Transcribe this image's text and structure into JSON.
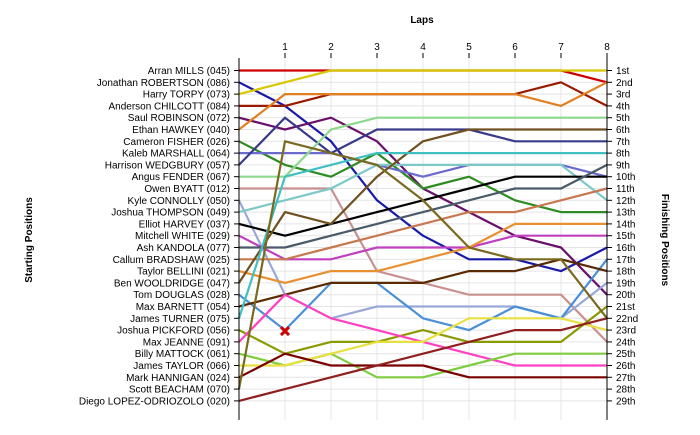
{
  "chart_data": {
    "type": "line",
    "title": "",
    "xlabel": "Laps",
    "ylabel_left": "Starting Positions",
    "ylabel_right": "Finishing Positions",
    "x": [
      0,
      1,
      2,
      3,
      4,
      5,
      6,
      7,
      8
    ],
    "x_tick_labels": [
      "1",
      "2",
      "3",
      "4",
      "5",
      "6",
      "7",
      "8"
    ],
    "y_range": [
      1,
      29
    ],
    "grid": true,
    "finishing_positions": [
      "1st",
      "2nd",
      "3rd",
      "4th",
      "5th",
      "6th",
      "7th",
      "8th",
      "9th",
      "10th",
      "11th",
      "12th",
      "13th",
      "14th",
      "15th",
      "16th",
      "17th",
      "18th",
      "19th",
      "20th",
      "21st",
      "22nd",
      "23rd",
      "24th",
      "25th",
      "26th",
      "27th",
      "28th",
      "29th"
    ],
    "annotations": [
      {
        "type": "crash-marker",
        "x": 1,
        "y": 23
      }
    ],
    "series": [
      {
        "name": "Arran MILLS (045)",
        "color": "#cc0000",
        "values": [
          1,
          1,
          1,
          1,
          1,
          1,
          1,
          1,
          2
        ]
      },
      {
        "name": "Jonathan ROBERTSON (086)",
        "color": "#1a1aa8",
        "values": [
          2,
          4,
          7,
          12,
          15,
          17,
          17,
          18,
          16
        ]
      },
      {
        "name": "Harry TORPY (073)",
        "color": "#d8c800",
        "values": [
          3,
          2,
          1,
          1,
          1,
          1,
          1,
          1,
          1
        ]
      },
      {
        "name": "Anderson CHILCOTT (084)",
        "color": "#9a1a00",
        "values": [
          4,
          4,
          3,
          3,
          3,
          3,
          3,
          2,
          4
        ]
      },
      {
        "name": "Saul ROBINSON (072)",
        "color": "#6a0f6a",
        "values": [
          5,
          6,
          5,
          7,
          11,
          13,
          15,
          16,
          20
        ]
      },
      {
        "name": "Ethan HAWKEY (040)",
        "color": "#e08020",
        "values": [
          6,
          3,
          3,
          3,
          3,
          3,
          3,
          4,
          2
        ]
      },
      {
        "name": "Cameron FISHER (026)",
        "color": "#2e8b22",
        "values": [
          7,
          9,
          10,
          8,
          11,
          10,
          12,
          13,
          13
        ]
      },
      {
        "name": "Kaleb MARSHALL (064)",
        "color": "#6a6ad0",
        "values": [
          8,
          8,
          8,
          9,
          10,
          9,
          9,
          9,
          10
        ]
      },
      {
        "name": "Harrison WEDGBURY (057)",
        "color": "#3a3a8a",
        "values": [
          9,
          5,
          8,
          6,
          6,
          6,
          7,
          7,
          7
        ]
      },
      {
        "name": "Angus FENDER (067)",
        "color": "#8ed88e",
        "values": [
          10,
          10,
          6,
          5,
          5,
          5,
          5,
          5,
          5
        ]
      },
      {
        "name": "Owen BYATT (012)",
        "color": "#c89090",
        "values": [
          11,
          11,
          11,
          18,
          19,
          20,
          20,
          20,
          24
        ]
      },
      {
        "name": "Kyle CONNOLLY (050)",
        "color": "#9aa8d8",
        "values": [
          12,
          20,
          22,
          21,
          21,
          21,
          21,
          22,
          19
        ]
      },
      {
        "name": "Joshua THOMPSON (049)",
        "color": "#7ec8c8",
        "values": [
          13,
          12,
          11,
          9,
          9,
          9,
          9,
          9,
          12
        ]
      },
      {
        "name": "Elliot HARVEY (037)",
        "color": "#000000",
        "values": [
          14,
          15,
          14,
          13,
          12,
          11,
          10,
          10,
          10
        ]
      },
      {
        "name": "Mitchell WHITE (029)",
        "color": "#c040c0",
        "values": [
          15,
          17,
          17,
          16,
          16,
          16,
          15,
          15,
          15
        ]
      },
      {
        "name": "Ash KANDOLA (077)",
        "color": "#4a5a6a",
        "values": [
          16,
          16,
          15,
          14,
          13,
          12,
          11,
          11,
          9
        ]
      },
      {
        "name": "Callum BRADSHAW (025)",
        "color": "#c87850",
        "values": [
          17,
          17,
          16,
          15,
          14,
          13,
          13,
          12,
          11
        ]
      },
      {
        "name": "Taylor BELLINI (021)",
        "color": "#e89030",
        "values": [
          18,
          19,
          18,
          18,
          17,
          16,
          14,
          14,
          14
        ]
      },
      {
        "name": "Ben WOOLDRIDGE (047)",
        "color": "#705020",
        "values": [
          19,
          13,
          14,
          10,
          7,
          6,
          6,
          6,
          6
        ]
      },
      {
        "name": "Tom DOUGLAS (028)",
        "color": "#4a90d8",
        "values": [
          20,
          23,
          19,
          19,
          22,
          23,
          21,
          22,
          17
        ]
      },
      {
        "name": "Max BARNETT (054)",
        "color": "#5a2a00",
        "values": [
          21,
          20,
          19,
          19,
          19,
          18,
          18,
          17,
          18
        ]
      },
      {
        "name": "James TURNER (075)",
        "color": "#40c0c0",
        "values": [
          22,
          10,
          9,
          8,
          8,
          8,
          8,
          8,
          8
        ]
      },
      {
        "name": "Joshua PICKFORD (056)",
        "color": "#8a9a00",
        "values": [
          23,
          25,
          24,
          24,
          23,
          24,
          24,
          24,
          21
        ]
      },
      {
        "name": "Max JEANNE (091)",
        "color": "#ff40c0",
        "values": [
          24,
          20,
          22,
          23,
          24,
          25,
          26,
          26,
          26
        ]
      },
      {
        "name": "Billy MATTOCK (061)",
        "color": "#80cc40",
        "values": [
          25,
          26,
          25,
          27,
          27,
          26,
          25,
          25,
          25
        ]
      },
      {
        "name": "James TAYLOR (066)",
        "color": "#e8e040",
        "values": [
          26,
          26,
          25,
          24,
          24,
          22,
          22,
          22,
          23
        ]
      },
      {
        "name": "Mark HANNIGAN (024)",
        "color": "#7a0000",
        "values": [
          27,
          25,
          26,
          26,
          26,
          27,
          27,
          27,
          27
        ]
      },
      {
        "name": "Scott BEACHAM (070)",
        "color": "#7a6a20",
        "values": [
          28,
          7,
          8,
          9,
          12,
          16,
          17,
          17,
          22
        ]
      },
      {
        "name": "Diego LOPEZ-ODRIOZOLO (020)",
        "color": "#902020",
        "values": [
          29,
          28,
          27,
          26,
          25,
          24,
          23,
          23,
          22
        ]
      }
    ]
  }
}
